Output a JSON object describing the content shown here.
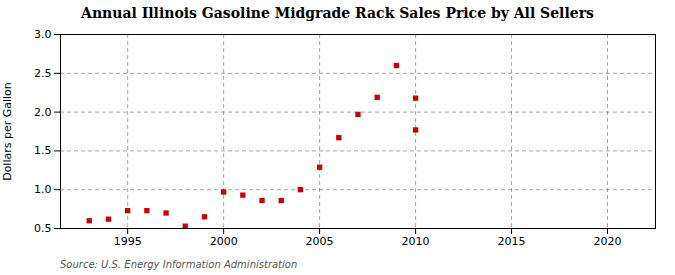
{
  "chart_data": {
    "type": "scatter",
    "title": "Annual Illinois Gasoline Midgrade Rack Sales Price by All Sellers",
    "ylabel": "Dollars per Gallon",
    "source": "Source: U.S. Energy Information Administration",
    "x": [
      1993,
      1994,
      1995,
      1996,
      1997,
      1998,
      1999,
      2000,
      2001,
      2002,
      2003,
      2004,
      2005,
      2006,
      2007,
      2008,
      2009,
      2010,
      2010
    ],
    "values": [
      0.6,
      0.62,
      0.73,
      0.73,
      0.7,
      0.53,
      0.65,
      0.97,
      0.93,
      0.86,
      0.86,
      1.0,
      1.29,
      1.67,
      1.97,
      2.19,
      2.6,
      1.77,
      2.18
    ],
    "color": "#cc0000",
    "marker": "square",
    "xlim": [
      1991.5,
      2022.5
    ],
    "ylim": [
      0.5,
      3.0
    ],
    "xticks": [
      1995,
      2000,
      2005,
      2010,
      2015,
      2020
    ],
    "yticks": [
      0.5,
      {
        "value": 1.0,
        "label": "1.0"
      },
      1.5,
      {
        "value": 2.0,
        "label": "2.0"
      },
      2.5,
      {
        "value": 3.0,
        "label": "3.0"
      }
    ],
    "grid": true
  }
}
